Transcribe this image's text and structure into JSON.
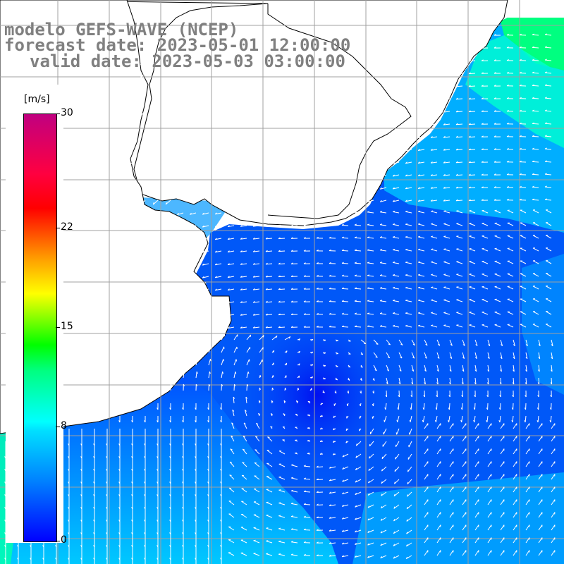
{
  "title": {
    "line1": "modelo GEFS-WAVE (NCEP)",
    "line2": "forecast date: 2023-05-01 12:00:00",
    "line3": "valid date: 2023-05-03 03:00:00"
  },
  "colorbar": {
    "unit": "[m/s]",
    "min": 0,
    "max": 30,
    "ticks": [
      {
        "value": 30,
        "label": "30"
      },
      {
        "value": 22,
        "label": "22"
      },
      {
        "value": 15,
        "label": "15"
      },
      {
        "value": 8,
        "label": "8"
      },
      {
        "value": 0,
        "label": "0"
      }
    ],
    "colors": [
      "#0000ff",
      "#0080ff",
      "#00ffff",
      "#00ff00",
      "#ffff00",
      "#ff8000",
      "#ff0000",
      "#c00080"
    ]
  },
  "map": {
    "field": "wind speed and direction",
    "land_color": "#ffffff",
    "grid_color": "#a0a0a0",
    "coastline_color": "#000000",
    "arrow_color": "#ffffff"
  }
}
